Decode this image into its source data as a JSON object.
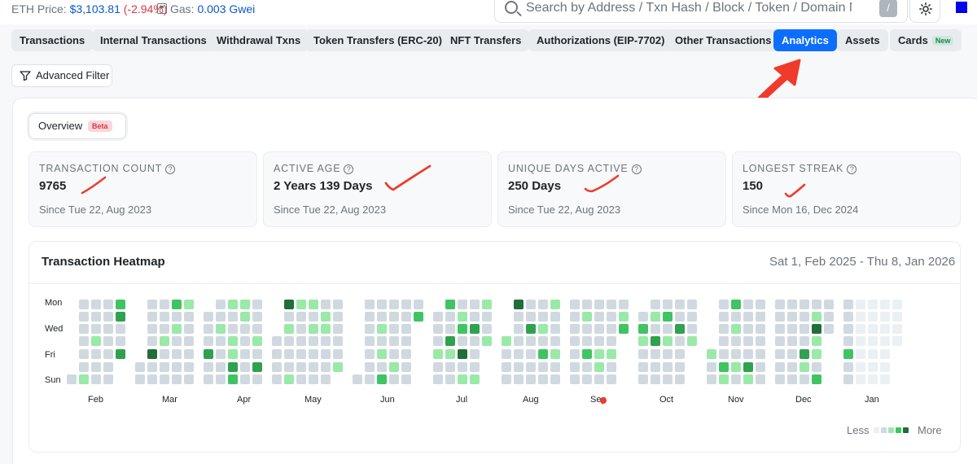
{
  "topbar": {
    "eth_price_label": "ETH Price:",
    "eth_price_value": "$3,103.81",
    "eth_price_change": "(-2.94%)",
    "gas_label": "Gas:",
    "gas_value": "0.003 Gwei",
    "search_placeholder": "Search by Address / Txn Hash / Block / Token / Domain Na",
    "search_shortcut": "/"
  },
  "tabs": [
    {
      "label": "Transactions",
      "active": false
    },
    {
      "label": "Internal Transactions",
      "active": false
    },
    {
      "label": "Withdrawal Txns",
      "active": false
    },
    {
      "label": "Token Transfers (ERC-20)",
      "active": false
    },
    {
      "label": "NFT Transfers",
      "active": false
    },
    {
      "label": "Authorizations (EIP-7702)",
      "active": false
    },
    {
      "label": "Other Transactions",
      "active": false
    },
    {
      "label": "Analytics",
      "active": true
    },
    {
      "label": "Assets",
      "active": false
    },
    {
      "label": "Cards",
      "badge": "New",
      "active": false
    }
  ],
  "advanced_filter_label": "Advanced Filter",
  "overview": {
    "label": "Overview",
    "badge": "Beta"
  },
  "stats": [
    {
      "label": "TRANSACTION COUNT",
      "value": "9765",
      "since": "Since Tue 22, Aug 2023"
    },
    {
      "label": "ACTIVE AGE",
      "value": "2 Years 139 Days",
      "since": "Since Tue 22, Aug 2023"
    },
    {
      "label": "UNIQUE DAYS ACTIVE",
      "value": "250 Days",
      "since": "Since Tue 22, Aug 2023"
    },
    {
      "label": "LONGEST STREAK",
      "value": "150",
      "since": "Since Mon 16, Dec 2024"
    }
  ],
  "heatmap": {
    "title": "Transaction Heatmap",
    "range": "Sat 1, Feb 2025 - Thu 8, Jan 2026",
    "day_labels": [
      "Mon",
      "Wed",
      "Fri",
      "Sun"
    ],
    "month_labels": [
      "Feb",
      "Mar",
      "Apr",
      "May",
      "Jun",
      "Jul",
      "Aug",
      "Sep",
      "Oct",
      "Nov",
      "Dec",
      "Jan"
    ],
    "legend_less": "Less",
    "legend_more": "More",
    "colors": [
      "#d1d9e0",
      "#9be9a8",
      "#40c463",
      "#30a14e",
      "#216e39",
      "#ebf0f4"
    ]
  }
}
